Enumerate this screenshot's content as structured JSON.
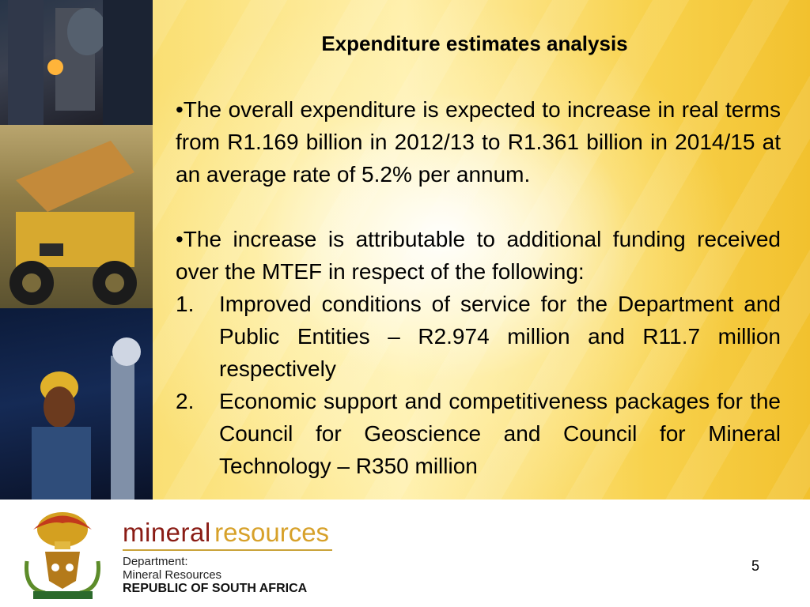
{
  "slide": {
    "title": "Expenditure estimates analysis",
    "bullet1": "•The overall expenditure is expected to increase in real terms from R1.169 billion in 2012/13 to R1.361 billion in 2014/15 at an average rate of 5.2% per annum.",
    "bullet2": "•The increase is attributable to additional funding received  over the MTEF in respect of the following:",
    "items": [
      {
        "num": "1.",
        "text": "Improved conditions of service for the Department and Public Entities  – R2.974 million and R11.7 million respectively"
      },
      {
        "num": "2.",
        "text": "Economic support and competitiveness packages for the Council for Geoscience and Council for Mineral Technology – R350 million"
      }
    ],
    "page_number": "5"
  },
  "logo": {
    "word1": "mineral",
    "word2": "resources",
    "dept_line1": "Department:",
    "dept_line2": "Mineral Resources",
    "country": "REPUBLIC OF SOUTH AFRICA"
  },
  "colors": {
    "background_yellow": "#f8d24d",
    "logo_red": "#8a1c15",
    "logo_gold": "#d7a12a"
  }
}
